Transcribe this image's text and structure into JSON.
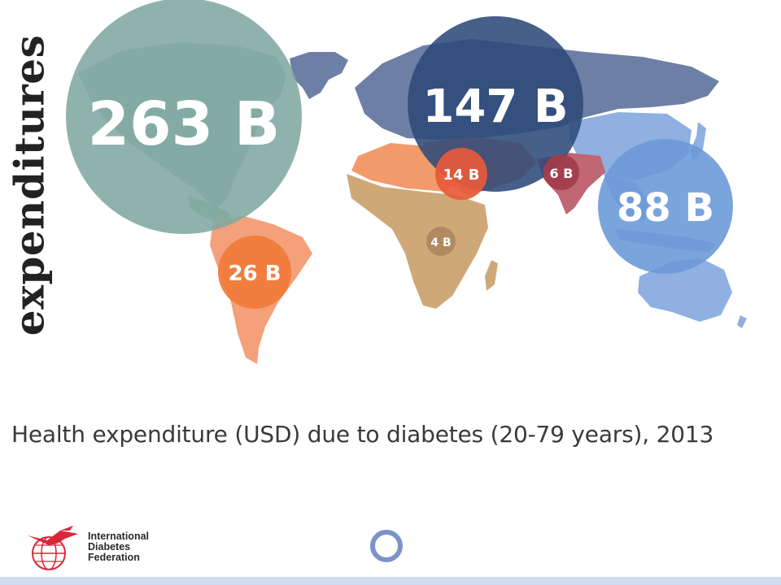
{
  "side_title": "expenditures",
  "caption": "Health expenditure (USD) due to diabetes (20-79 years), 2013",
  "organization": {
    "line1": "International",
    "line2": "Diabetes",
    "line3": "Federation"
  },
  "regions": [
    {
      "id": "north-america",
      "label": "263 B",
      "color": "#7fa9a1"
    },
    {
      "id": "europe",
      "label": "147 B",
      "color": "#2d4a7a"
    },
    {
      "id": "western-pacific",
      "label": "88 B",
      "color": "#6b9ad8"
    },
    {
      "id": "south-central-america",
      "label": "26 B",
      "color": "#f07a3a"
    },
    {
      "id": "middle-east-north-africa",
      "label": "14 B",
      "color": "#e85a3a"
    },
    {
      "id": "south-east-asia",
      "label": "6 B",
      "color": "#a33c4a"
    },
    {
      "id": "africa",
      "label": "4 B",
      "color": "#b08860"
    }
  ],
  "colors": {
    "accent_ring": "#7b93c9",
    "bottom_bar": "#cfdcec",
    "logo_red": "#d9273a"
  }
}
